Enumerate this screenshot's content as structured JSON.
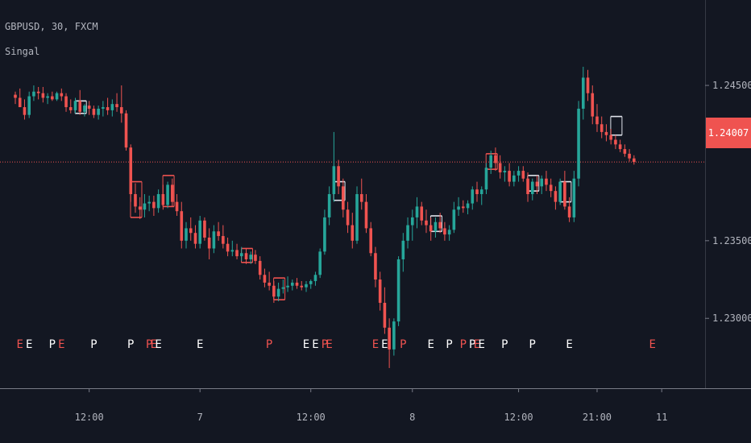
{
  "header": {
    "symbol": "GBPUSD",
    "interval": "30",
    "exchange": "FXCM",
    "indicator": "Singal"
  },
  "colors": {
    "background": "#131722",
    "up": "#26a69a",
    "down": "#ef5350",
    "axis_text": "#b2b5be",
    "axis_line": "#787b86",
    "box": "#e0e3eb",
    "box_down": "#ef5350",
    "signal_white": "#ffffff",
    "signal_red": "#ef5350"
  },
  "current_price": {
    "value": 1.24007,
    "label": "1.24007"
  },
  "chart_data": {
    "type": "candlestick",
    "title": "GBPUSD, 30, FXCM",
    "ylim": [
      1.2255,
      1.2505
    ],
    "y_ticks": [
      {
        "value": 1.245,
        "label": "1.24500"
      },
      {
        "value": 1.235,
        "label": "1.23500"
      },
      {
        "value": 1.23,
        "label": "1.23000"
      }
    ],
    "x_ticks": [
      {
        "bar": 16,
        "label": "12:00"
      },
      {
        "bar": 40,
        "label": "7"
      },
      {
        "bar": 64,
        "label": "12:00"
      },
      {
        "bar": 86,
        "label": "8"
      },
      {
        "bar": 109,
        "label": "12:00"
      },
      {
        "bar": 126,
        "label": "21:00"
      },
      {
        "bar": 140,
        "label": "11"
      }
    ],
    "candles": [
      [
        1.2444,
        1.2446,
        1.2438,
        1.2442
      ],
      [
        1.2442,
        1.2448,
        1.2436,
        1.2436
      ],
      [
        1.2436,
        1.2441,
        1.2428,
        1.2431
      ],
      [
        1.2431,
        1.2446,
        1.2429,
        1.2443
      ],
      [
        1.2443,
        1.245,
        1.244,
        1.2446
      ],
      [
        1.2446,
        1.2449,
        1.2441,
        1.2445
      ],
      [
        1.2445,
        1.2449,
        1.2439,
        1.2442
      ],
      [
        1.2442,
        1.2445,
        1.2438,
        1.2443
      ],
      [
        1.2443,
        1.2446,
        1.244,
        1.2441
      ],
      [
        1.2441,
        1.2446,
        1.244,
        1.2445
      ],
      [
        1.2445,
        1.2448,
        1.244,
        1.2443
      ],
      [
        1.2443,
        1.2445,
        1.2433,
        1.2436
      ],
      [
        1.2436,
        1.2441,
        1.2432,
        1.2434
      ],
      [
        1.2434,
        1.2442,
        1.2432,
        1.244
      ],
      [
        1.244,
        1.2447,
        1.2431,
        1.2433
      ],
      [
        1.2433,
        1.2438,
        1.243,
        1.2437
      ],
      [
        1.2437,
        1.244,
        1.2431,
        1.2435
      ],
      [
        1.2435,
        1.2437,
        1.2429,
        1.2431
      ],
      [
        1.2431,
        1.2437,
        1.2428,
        1.2435
      ],
      [
        1.2435,
        1.244,
        1.243,
        1.2436
      ],
      [
        1.2436,
        1.2442,
        1.2431,
        1.2434
      ],
      [
        1.2434,
        1.2441,
        1.243,
        1.2438
      ],
      [
        1.2438,
        1.2445,
        1.2433,
        1.2436
      ],
      [
        1.2436,
        1.245,
        1.2426,
        1.2432
      ],
      [
        1.2432,
        1.2434,
        1.2408,
        1.241
      ],
      [
        1.241,
        1.2412,
        1.2375,
        1.238
      ],
      [
        1.238,
        1.2387,
        1.2368,
        1.2372
      ],
      [
        1.2372,
        1.2378,
        1.2364,
        1.237
      ],
      [
        1.237,
        1.238,
        1.2365,
        1.2374
      ],
      [
        1.2374,
        1.2379,
        1.2369,
        1.2375
      ],
      [
        1.2375,
        1.2379,
        1.2366,
        1.2371
      ],
      [
        1.2371,
        1.2383,
        1.2368,
        1.238
      ],
      [
        1.238,
        1.2386,
        1.237,
        1.2373
      ],
      [
        1.2373,
        1.2388,
        1.2371,
        1.2386
      ],
      [
        1.2386,
        1.239,
        1.2372,
        1.2375
      ],
      [
        1.2375,
        1.238,
        1.2366,
        1.2369
      ],
      [
        1.2369,
        1.2375,
        1.2345,
        1.235
      ],
      [
        1.235,
        1.2362,
        1.2345,
        1.2358
      ],
      [
        1.2358,
        1.2365,
        1.235,
        1.2355
      ],
      [
        1.2355,
        1.236,
        1.2345,
        1.2348
      ],
      [
        1.2348,
        1.2366,
        1.2345,
        1.2363
      ],
      [
        1.2363,
        1.2365,
        1.235,
        1.2352
      ],
      [
        1.2352,
        1.2358,
        1.2338,
        1.2345
      ],
      [
        1.2345,
        1.236,
        1.2342,
        1.2356
      ],
      [
        1.2356,
        1.2362,
        1.235,
        1.2353
      ],
      [
        1.2353,
        1.236,
        1.2345,
        1.2348
      ],
      [
        1.2348,
        1.2352,
        1.234,
        1.2343
      ],
      [
        1.2343,
        1.235,
        1.234,
        1.2344
      ],
      [
        1.2344,
        1.2348,
        1.2338,
        1.234
      ],
      [
        1.234,
        1.2346,
        1.2337,
        1.2342
      ],
      [
        1.2342,
        1.2345,
        1.2335,
        1.2338
      ],
      [
        1.2338,
        1.2343,
        1.2335,
        1.2341
      ],
      [
        1.2341,
        1.2344,
        1.2335,
        1.2337
      ],
      [
        1.2337,
        1.234,
        1.2325,
        1.2328
      ],
      [
        1.2328,
        1.2332,
        1.232,
        1.2323
      ],
      [
        1.2323,
        1.233,
        1.2318,
        1.2321
      ],
      [
        1.2321,
        1.2324,
        1.231,
        1.2314
      ],
      [
        1.2314,
        1.2323,
        1.2311,
        1.2319
      ],
      [
        1.2319,
        1.2325,
        1.2316,
        1.232
      ],
      [
        1.232,
        1.2327,
        1.2317,
        1.2321
      ],
      [
        1.2321,
        1.2325,
        1.2318,
        1.2323
      ],
      [
        1.2323,
        1.2326,
        1.2319,
        1.2321
      ],
      [
        1.2321,
        1.2324,
        1.2318,
        1.232
      ],
      [
        1.232,
        1.2324,
        1.2317,
        1.2322
      ],
      [
        1.2322,
        1.2325,
        1.2319,
        1.2324
      ],
      [
        1.2324,
        1.233,
        1.2321,
        1.2328
      ],
      [
        1.2328,
        1.2345,
        1.2326,
        1.2343
      ],
      [
        1.2343,
        1.237,
        1.2341,
        1.2365
      ],
      [
        1.2365,
        1.2385,
        1.236,
        1.238
      ],
      [
        1.238,
        1.242,
        1.2375,
        1.2398
      ],
      [
        1.2398,
        1.2402,
        1.238,
        1.2385
      ],
      [
        1.2385,
        1.239,
        1.2365,
        1.237
      ],
      [
        1.237,
        1.2375,
        1.2355,
        1.236
      ],
      [
        1.236,
        1.2368,
        1.2345,
        1.235
      ],
      [
        1.235,
        1.2385,
        1.2348,
        1.238
      ],
      [
        1.238,
        1.239,
        1.237,
        1.2375
      ],
      [
        1.2375,
        1.238,
        1.2355,
        1.2358
      ],
      [
        1.2358,
        1.2362,
        1.234,
        1.2342
      ],
      [
        1.2342,
        1.2346,
        1.232,
        1.2325
      ],
      [
        1.2325,
        1.233,
        1.2305,
        1.231
      ],
      [
        1.231,
        1.232,
        1.229,
        1.2294
      ],
      [
        1.2294,
        1.23,
        1.2268,
        1.228
      ],
      [
        1.228,
        1.23,
        1.2276,
        1.2298
      ],
      [
        1.2298,
        1.234,
        1.2295,
        1.2338
      ],
      [
        1.2338,
        1.2355,
        1.233,
        1.235
      ],
      [
        1.235,
        1.2365,
        1.2345,
        1.236
      ],
      [
        1.236,
        1.237,
        1.235,
        1.2365
      ],
      [
        1.2365,
        1.2378,
        1.2358,
        1.2372
      ],
      [
        1.2372,
        1.2375,
        1.236,
        1.2363
      ],
      [
        1.2363,
        1.237,
        1.2355,
        1.236
      ],
      [
        1.236,
        1.2365,
        1.235,
        1.2356
      ],
      [
        1.2356,
        1.2365,
        1.2352,
        1.2362
      ],
      [
        1.2362,
        1.2368,
        1.2355,
        1.2358
      ],
      [
        1.2358,
        1.2362,
        1.235,
        1.2354
      ],
      [
        1.2354,
        1.236,
        1.235,
        1.2357
      ],
      [
        1.2357,
        1.2375,
        1.2355,
        1.237
      ],
      [
        1.237,
        1.2378,
        1.2366,
        1.2372
      ],
      [
        1.2372,
        1.2376,
        1.2368,
        1.2371
      ],
      [
        1.2371,
        1.2376,
        1.2367,
        1.2374
      ],
      [
        1.2374,
        1.2385,
        1.237,
        1.2383
      ],
      [
        1.2383,
        1.2388,
        1.2375,
        1.238
      ],
      [
        1.238,
        1.2385,
        1.2373,
        1.2383
      ],
      [
        1.2383,
        1.24,
        1.238,
        1.2397
      ],
      [
        1.2397,
        1.2408,
        1.2393,
        1.2405
      ],
      [
        1.2405,
        1.241,
        1.2395,
        1.24
      ],
      [
        1.24,
        1.2405,
        1.239,
        1.2394
      ],
      [
        1.2394,
        1.2398,
        1.2388,
        1.2395
      ],
      [
        1.2395,
        1.24,
        1.2385,
        1.2388
      ],
      [
        1.2388,
        1.2395,
        1.2385,
        1.2392
      ],
      [
        1.2392,
        1.2398,
        1.2388,
        1.2395
      ],
      [
        1.2395,
        1.2398,
        1.2388,
        1.239
      ],
      [
        1.239,
        1.2394,
        1.2375,
        1.238
      ],
      [
        1.238,
        1.239,
        1.2376,
        1.2388
      ],
      [
        1.2388,
        1.2392,
        1.238,
        1.2385
      ],
      [
        1.2385,
        1.2392,
        1.238,
        1.239
      ],
      [
        1.239,
        1.2395,
        1.2382,
        1.2386
      ],
      [
        1.2386,
        1.239,
        1.2378,
        1.2382
      ],
      [
        1.2382,
        1.2385,
        1.237,
        1.2375
      ],
      [
        1.2375,
        1.239,
        1.2373,
        1.2388
      ],
      [
        1.2388,
        1.2395,
        1.237,
        1.2372
      ],
      [
        1.2372,
        1.2378,
        1.2362,
        1.2365
      ],
      [
        1.2365,
        1.2395,
        1.2362,
        1.239
      ],
      [
        1.239,
        1.244,
        1.2385,
        1.2435
      ],
      [
        1.2435,
        1.2462,
        1.2428,
        1.2455
      ],
      [
        1.2455,
        1.246,
        1.244,
        1.2445
      ],
      [
        1.2445,
        1.245,
        1.2425,
        1.243
      ],
      [
        1.243,
        1.2438,
        1.242,
        1.2425
      ],
      [
        1.2425,
        1.243,
        1.2416,
        1.242
      ],
      [
        1.242,
        1.2425,
        1.2414,
        1.2418
      ],
      [
        1.2418,
        1.2422,
        1.2412,
        1.2415
      ],
      [
        1.2415,
        1.2418,
        1.2409,
        1.2412
      ],
      [
        1.2412,
        1.2415,
        1.2407,
        1.2409
      ],
      [
        1.2409,
        1.2412,
        1.2404,
        1.2406
      ],
      [
        1.2406,
        1.2409,
        1.2401,
        1.2403
      ],
      [
        1.2403,
        1.2405,
        1.2399,
        1.24007
      ]
    ],
    "signals": [
      {
        "bar": 1,
        "label": "E",
        "color": "red"
      },
      {
        "bar": 3,
        "label": "E",
        "color": "white"
      },
      {
        "bar": 8,
        "label": "P",
        "color": "white"
      },
      {
        "bar": 10,
        "label": "E",
        "color": "red"
      },
      {
        "bar": 17,
        "label": "P",
        "color": "white"
      },
      {
        "bar": 25,
        "label": "P",
        "color": "white"
      },
      {
        "bar": 29,
        "label": "P",
        "color": "red"
      },
      {
        "bar": 30,
        "label": "E",
        "color": "red"
      },
      {
        "bar": 31,
        "label": "E",
        "color": "white"
      },
      {
        "bar": 40,
        "label": "E",
        "color": "white"
      },
      {
        "bar": 55,
        "label": "P",
        "color": "red"
      },
      {
        "bar": 63,
        "label": "E",
        "color": "white"
      },
      {
        "bar": 65,
        "label": "E",
        "color": "white"
      },
      {
        "bar": 67,
        "label": "P",
        "color": "red"
      },
      {
        "bar": 68,
        "label": "E",
        "color": "red"
      },
      {
        "bar": 78,
        "label": "E",
        "color": "red"
      },
      {
        "bar": 80,
        "label": "E",
        "color": "white"
      },
      {
        "bar": 84,
        "label": "P",
        "color": "red"
      },
      {
        "bar": 90,
        "label": "E",
        "color": "white"
      },
      {
        "bar": 94,
        "label": "P",
        "color": "white"
      },
      {
        "bar": 97,
        "label": "P",
        "color": "red"
      },
      {
        "bar": 99,
        "label": "P",
        "color": "white"
      },
      {
        "bar": 100,
        "label": "E",
        "color": "red"
      },
      {
        "bar": 101,
        "label": "E",
        "color": "white"
      },
      {
        "bar": 106,
        "label": "P",
        "color": "white"
      },
      {
        "bar": 112,
        "label": "P",
        "color": "white"
      },
      {
        "bar": 120,
        "label": "E",
        "color": "white"
      },
      {
        "bar": 138,
        "label": "E",
        "color": "red"
      }
    ],
    "boxes": [
      {
        "bar": 14,
        "top": 1.244,
        "bottom": 1.2432,
        "color": "white"
      },
      {
        "bar": 26,
        "top": 1.2388,
        "bottom": 1.2365,
        "color": "red"
      },
      {
        "bar": 33,
        "top": 1.2392,
        "bottom": 1.2372,
        "color": "red"
      },
      {
        "bar": 50,
        "top": 1.2345,
        "bottom": 1.2336,
        "color": "red"
      },
      {
        "bar": 57,
        "top": 1.2326,
        "bottom": 1.2312,
        "color": "red"
      },
      {
        "bar": 70,
        "top": 1.2388,
        "bottom": 1.2376,
        "color": "white"
      },
      {
        "bar": 91,
        "top": 1.2366,
        "bottom": 1.2356,
        "color": "white"
      },
      {
        "bar": 103,
        "top": 1.2406,
        "bottom": 1.2396,
        "color": "red"
      },
      {
        "bar": 112,
        "top": 1.2392,
        "bottom": 1.2382,
        "color": "white"
      },
      {
        "bar": 119,
        "top": 1.2388,
        "bottom": 1.2375,
        "color": "white"
      },
      {
        "bar": 130,
        "top": 1.243,
        "bottom": 1.2418,
        "color": "white"
      }
    ]
  }
}
